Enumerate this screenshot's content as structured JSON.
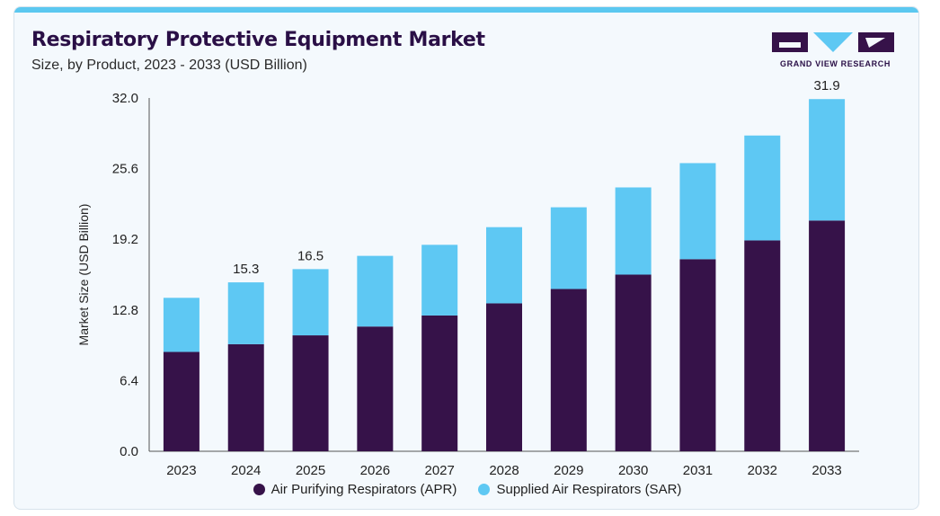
{
  "header": {
    "title": "Respiratory Protective Equipment Market",
    "subtitle": "Size, by Product, 2023 - 2033 (USD Billion)"
  },
  "logo": {
    "text": "GRAND VIEW RESEARCH"
  },
  "colors": {
    "apr": "#361249",
    "sar": "#5ec8f3",
    "accent": "#5bc8f0"
  },
  "chart_data": {
    "type": "bar",
    "stacked": true,
    "title": "Respiratory Protective Equipment Market",
    "subtitle": "Size, by Product, 2023 - 2033 (USD Billion)",
    "xlabel": "",
    "ylabel": "Market Size (USD Billion)",
    "ylim": [
      0,
      32
    ],
    "yticks": [
      "0.0",
      "6.4",
      "12.8",
      "19.2",
      "25.6",
      "32.0"
    ],
    "categories": [
      "2023",
      "2024",
      "2025",
      "2026",
      "2027",
      "2028",
      "2029",
      "2030",
      "2031",
      "2032",
      "2033"
    ],
    "series": [
      {
        "name": "Air Purifying Respirators (APR)",
        "values": [
          9.0,
          9.7,
          10.5,
          11.3,
          12.3,
          13.4,
          14.7,
          16.0,
          17.4,
          19.1,
          20.9
        ]
      },
      {
        "name": "Supplied Air Respirators (SAR)",
        "values": [
          4.9,
          5.6,
          6.0,
          6.4,
          6.4,
          6.9,
          7.4,
          7.9,
          8.7,
          9.5,
          11.0
        ]
      }
    ],
    "annotations": [
      {
        "category": "2024",
        "text": "15.3"
      },
      {
        "category": "2025",
        "text": "16.5"
      },
      {
        "category": "2033",
        "text": "31.9"
      }
    ],
    "legend_position": "bottom",
    "grid": false
  }
}
